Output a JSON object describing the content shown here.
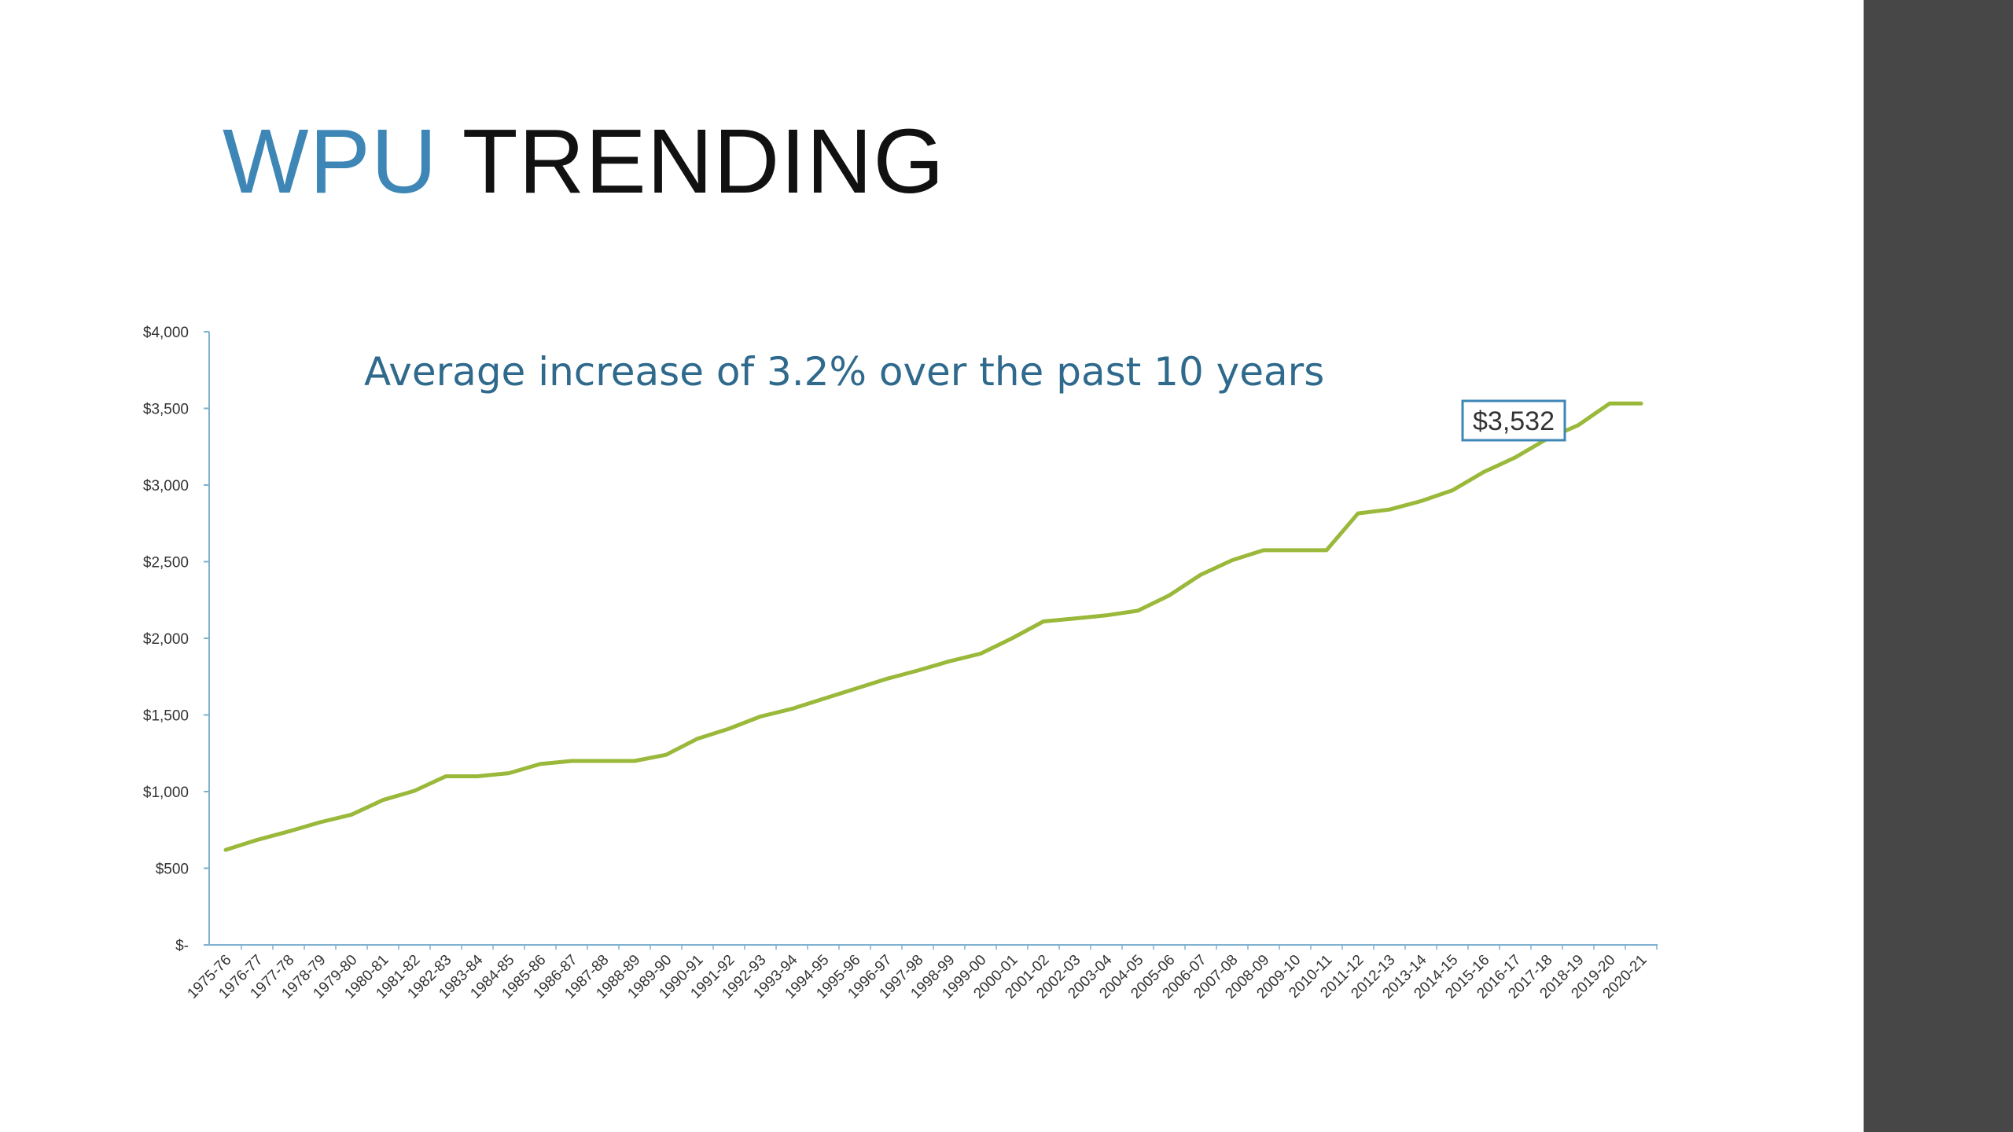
{
  "slide": {
    "title_accent": "WPU",
    "title_main": "TRENDING",
    "colors": {
      "accent": "#3e86b5",
      "line": "#9ab83a",
      "side_bar": "#474747",
      "axis": "#7fb1d0"
    }
  },
  "chart_data": {
    "type": "line",
    "title": "",
    "xlabel": "",
    "ylabel": "",
    "categories": [
      "1975-76",
      "1976-77",
      "1977-78",
      "1978-79",
      "1979-80",
      "1980-81",
      "1981-82",
      "1982-83",
      "1983-84",
      "1984-85",
      "1985-86",
      "1986-87",
      "1987-88",
      "1988-89",
      "1989-90",
      "1990-91",
      "1991-92",
      "1992-93",
      "1993-94",
      "1994-95",
      "1995-96",
      "1996-97",
      "1997-98",
      "1998-99",
      "1999-00",
      "2000-01",
      "2001-02",
      "2002-03",
      "2003-04",
      "2004-05",
      "2005-06",
      "2006-07",
      "2007-08",
      "2008-09",
      "2009-10",
      "2010-11",
      "2011-12",
      "2012-13",
      "2013-14",
      "2014-15",
      "2015-16",
      "2016-17",
      "2017-18",
      "2018-19",
      "2019-20",
      "2020-21"
    ],
    "series": [
      {
        "values": [
          620,
          685,
          740,
          800,
          850,
          945,
          1005,
          1100,
          1100,
          1120,
          1180,
          1200,
          1200,
          1200,
          1240,
          1345,
          1410,
          1490,
          1540,
          1605,
          1670,
          1735,
          1790,
          1850,
          1900,
          2000,
          2110,
          2130,
          2150,
          2180,
          2280,
          2415,
          2510,
          2575,
          2575,
          2575,
          2815,
          2840,
          2895,
          2965,
          3085,
          3180,
          3300,
          3390,
          3532,
          3532
        ]
      }
    ],
    "ylim": [
      0,
      4000
    ],
    "yticks": [
      0,
      500,
      1000,
      1500,
      2000,
      2500,
      3000,
      3500,
      4000
    ],
    "ytick_labels": [
      "$-",
      "$500",
      "$1,000",
      "$1,500",
      "$2,000",
      "$2,500",
      "$3,000",
      "$3,500",
      "$4,000"
    ],
    "grid": false,
    "legend": "none",
    "annotations": [
      {
        "text": "Average increase of 3.2% over the past 10 years"
      },
      {
        "text": "$3,532",
        "category": "2019-20",
        "value": 3532
      }
    ]
  }
}
